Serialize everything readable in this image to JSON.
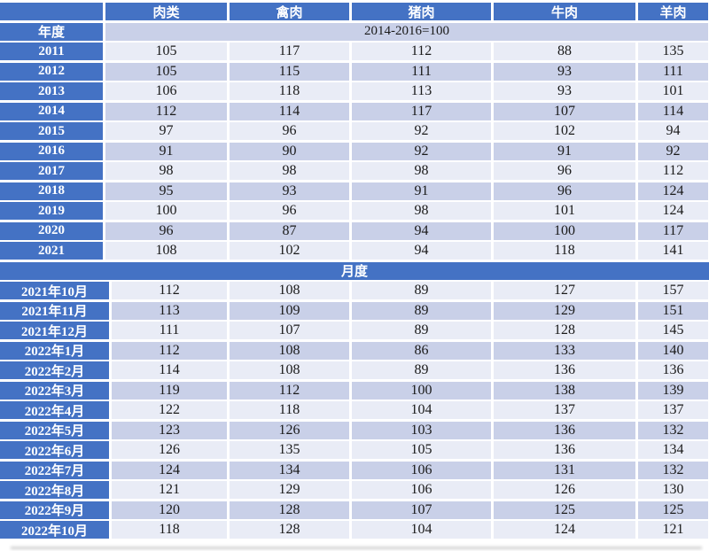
{
  "table": {
    "corner": "",
    "columns": [
      "肉类",
      "禽肉",
      "猪肉",
      "牛肉",
      "羊肉"
    ],
    "base_note": "2014-2016=100",
    "yearly": {
      "label": "年度",
      "rows": [
        {
          "label": "2011",
          "values": [
            105,
            117,
            112,
            88,
            135
          ]
        },
        {
          "label": "2012",
          "values": [
            105,
            115,
            111,
            93,
            111
          ]
        },
        {
          "label": "2013",
          "values": [
            106,
            118,
            113,
            93,
            101
          ]
        },
        {
          "label": "2014",
          "values": [
            112,
            114,
            117,
            107,
            114
          ]
        },
        {
          "label": "2015",
          "values": [
            97,
            96,
            92,
            102,
            94
          ]
        },
        {
          "label": "2016",
          "values": [
            91,
            90,
            92,
            91,
            92
          ]
        },
        {
          "label": "2017",
          "values": [
            98,
            98,
            98,
            96,
            112
          ]
        },
        {
          "label": "2018",
          "values": [
            95,
            93,
            91,
            96,
            124
          ]
        },
        {
          "label": "2019",
          "values": [
            100,
            96,
            98,
            101,
            124
          ]
        },
        {
          "label": "2020",
          "values": [
            96,
            87,
            94,
            100,
            117
          ]
        },
        {
          "label": "2021",
          "values": [
            108,
            102,
            94,
            118,
            141
          ]
        }
      ]
    },
    "monthly": {
      "label": "月度",
      "rows": [
        {
          "label": "2021年10月",
          "values": [
            112,
            108,
            89,
            127,
            157
          ]
        },
        {
          "label": "2021年11月",
          "values": [
            113,
            109,
            89,
            129,
            151
          ]
        },
        {
          "label": "2021年12月",
          "values": [
            111,
            107,
            89,
            128,
            145
          ]
        },
        {
          "label": "2022年1月",
          "values": [
            112,
            108,
            86,
            133,
            140
          ]
        },
        {
          "label": "2022年2月",
          "values": [
            114,
            108,
            89,
            136,
            136
          ]
        },
        {
          "label": "2022年3月",
          "values": [
            119,
            112,
            100,
            138,
            139
          ]
        },
        {
          "label": "2022年4月",
          "values": [
            122,
            118,
            104,
            137,
            137
          ]
        },
        {
          "label": "2022年5月",
          "values": [
            123,
            126,
            103,
            136,
            132
          ]
        },
        {
          "label": "2022年6月",
          "values": [
            126,
            135,
            105,
            136,
            134
          ]
        },
        {
          "label": "2022年7月",
          "values": [
            124,
            134,
            106,
            131,
            132
          ]
        },
        {
          "label": "2022年8月",
          "values": [
            121,
            129,
            106,
            126,
            130
          ]
        },
        {
          "label": "2022年9月",
          "values": [
            120,
            128,
            107,
            125,
            125
          ]
        },
        {
          "label": "2022年10月",
          "values": [
            118,
            128,
            104,
            124,
            121
          ]
        }
      ]
    }
  },
  "colors": {
    "header_blue": "#4472C4",
    "row_light": "#E9ECF6",
    "row_medium": "#C9D0E8",
    "header_text": "#FFFFFF",
    "data_text": "#1A1A1A"
  },
  "chart_data": {
    "type": "table",
    "base_period_note": "2014-2016=100",
    "columns": [
      "",
      "肉类",
      "禽肉",
      "猪肉",
      "牛肉",
      "羊肉"
    ],
    "sections": [
      {
        "section_label": "年度",
        "rows": [
          [
            "2011",
            105,
            117,
            112,
            88,
            135
          ],
          [
            "2012",
            105,
            115,
            111,
            93,
            111
          ],
          [
            "2013",
            106,
            118,
            113,
            93,
            101
          ],
          [
            "2014",
            112,
            114,
            117,
            107,
            114
          ],
          [
            "2015",
            97,
            96,
            92,
            102,
            94
          ],
          [
            "2016",
            91,
            90,
            92,
            91,
            92
          ],
          [
            "2017",
            98,
            98,
            98,
            96,
            112
          ],
          [
            "2018",
            95,
            93,
            91,
            96,
            124
          ],
          [
            "2019",
            100,
            96,
            98,
            101,
            124
          ],
          [
            "2020",
            96,
            87,
            94,
            100,
            117
          ],
          [
            "2021",
            108,
            102,
            94,
            118,
            141
          ]
        ]
      },
      {
        "section_label": "月度",
        "rows": [
          [
            "2021年10月",
            112,
            108,
            89,
            127,
            157
          ],
          [
            "2021年11月",
            113,
            109,
            89,
            129,
            151
          ],
          [
            "2021年12月",
            111,
            107,
            89,
            128,
            145
          ],
          [
            "2022年1月",
            112,
            108,
            86,
            133,
            140
          ],
          [
            "2022年2月",
            114,
            108,
            89,
            136,
            136
          ],
          [
            "2022年3月",
            119,
            112,
            100,
            138,
            139
          ],
          [
            "2022年4月",
            122,
            118,
            104,
            137,
            137
          ],
          [
            "2022年5月",
            123,
            126,
            103,
            136,
            132
          ],
          [
            "2022年6月",
            126,
            135,
            105,
            136,
            134
          ],
          [
            "2022年7月",
            124,
            134,
            106,
            131,
            132
          ],
          [
            "2022年8月",
            121,
            129,
            106,
            126,
            130
          ],
          [
            "2022年9月",
            120,
            128,
            107,
            125,
            125
          ],
          [
            "2022年10月",
            118,
            128,
            104,
            124,
            121
          ]
        ]
      }
    ]
  }
}
